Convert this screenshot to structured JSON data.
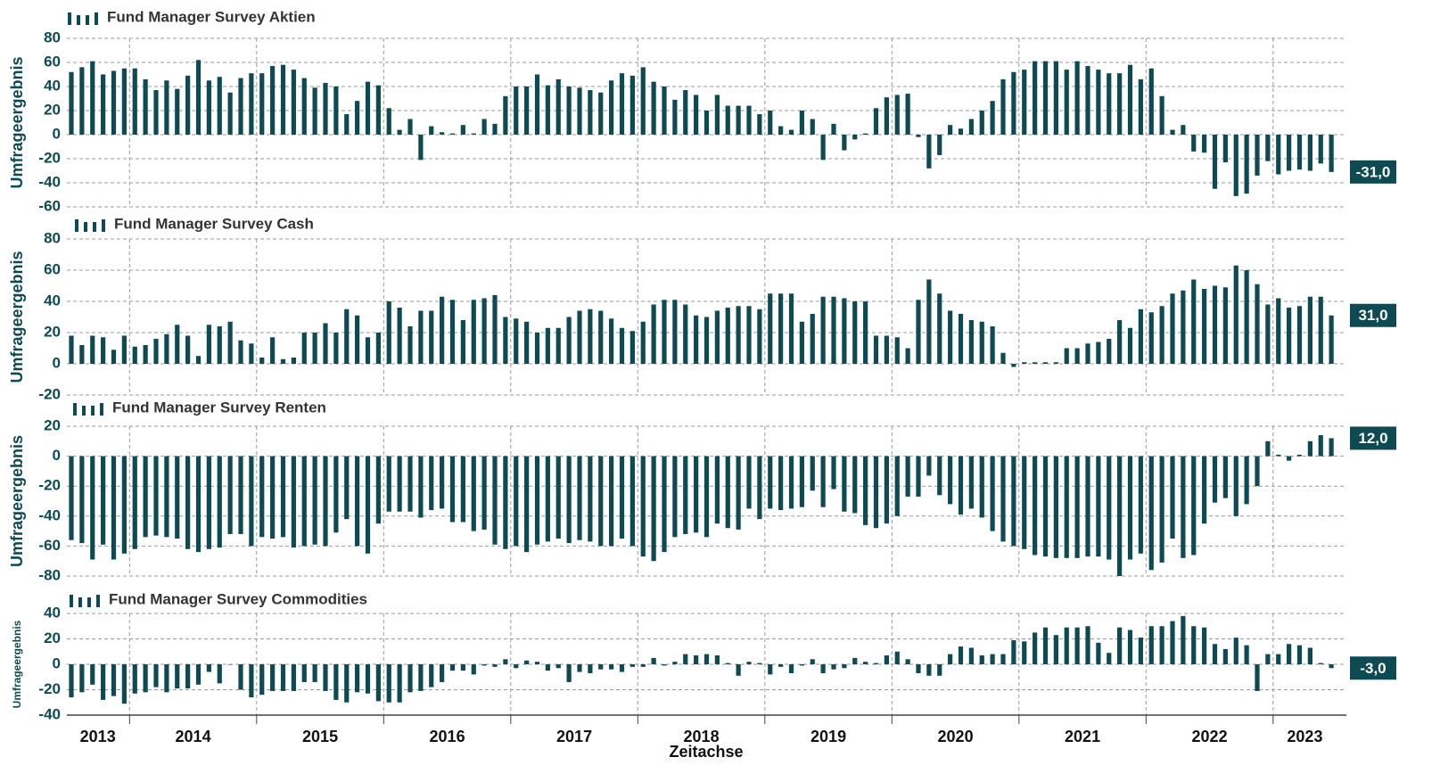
{
  "x_axis": {
    "title": "Zeitachse",
    "years": [
      "2013",
      "2014",
      "2015",
      "2016",
      "2017",
      "2018",
      "2019",
      "2020",
      "2021",
      "2022",
      "2023"
    ]
  },
  "chart_data": [
    {
      "type": "bar",
      "title": "Fund Manager Survey Aktien",
      "y_label": "Umfrageergebnis",
      "color": "#0d4a52",
      "ylim": [
        -60,
        80
      ],
      "yticks": [
        -60,
        -40,
        -20,
        0,
        20,
        40,
        60,
        80
      ],
      "grid": true,
      "last_value_label": "-31,0",
      "values": [
        52,
        56,
        61,
        50,
        53,
        55,
        55,
        46,
        37,
        45,
        38,
        49,
        62,
        45,
        48,
        35,
        47,
        51,
        51,
        57,
        58,
        54,
        47,
        39,
        43,
        40,
        17,
        28,
        44,
        41,
        22,
        4,
        13,
        -21,
        7,
        2,
        1,
        8,
        1,
        13,
        9,
        32,
        40,
        40,
        50,
        41,
        46,
        40,
        39,
        37,
        35,
        45,
        51,
        49,
        56,
        44,
        40,
        29,
        37,
        33,
        20,
        33,
        24,
        24,
        24,
        17,
        20,
        7,
        4,
        20,
        13,
        -21,
        9,
        -13,
        -4,
        1,
        22,
        31,
        33,
        34,
        -2,
        -28,
        -17,
        8,
        5,
        13,
        20,
        28,
        46,
        52,
        54,
        61,
        61,
        61,
        54,
        61,
        57,
        54,
        51,
        51,
        58,
        46,
        55,
        32,
        4,
        8,
        -14,
        -15,
        -45,
        -23,
        -51,
        -49,
        -34,
        -22,
        -33,
        -30,
        -29,
        -30,
        -24,
        -31
      ]
    },
    {
      "type": "bar",
      "title": "Fund Manager Survey Cash",
      "y_label": "Umfrageergebnis",
      "color": "#0d4a52",
      "ylim": [
        -20,
        80
      ],
      "yticks": [
        -20,
        0,
        20,
        40,
        60,
        80
      ],
      "grid": true,
      "last_value_label": "31,0",
      "values": [
        18,
        12,
        18,
        17,
        9,
        18,
        11,
        12,
        16,
        19,
        25,
        18,
        5,
        25,
        24,
        27,
        15,
        13,
        4,
        17,
        3,
        4,
        20,
        20,
        26,
        20,
        35,
        31,
        17,
        20,
        40,
        36,
        24,
        34,
        34,
        43,
        41,
        28,
        41,
        42,
        44,
        30,
        29,
        27,
        20,
        23,
        23,
        30,
        34,
        35,
        34,
        29,
        23,
        21,
        27,
        38,
        41,
        41,
        38,
        31,
        30,
        34,
        36,
        37,
        37,
        35,
        45,
        45,
        45,
        27,
        32,
        43,
        43,
        42,
        40,
        40,
        18,
        18,
        17,
        10,
        41,
        54,
        45,
        34,
        32,
        28,
        27,
        24,
        7,
        -2,
        1,
        1,
        1,
        1,
        10,
        10,
        13,
        14,
        16,
        28,
        23,
        35,
        33,
        37,
        45,
        47,
        54,
        48,
        50,
        49,
        63,
        60,
        51,
        38,
        42,
        36,
        37,
        43,
        43,
        31
      ]
    },
    {
      "type": "bar",
      "title": "Fund Manager Survey Renten",
      "y_label": "Umfrageergebnis",
      "color": "#0d4a52",
      "ylim": [
        -80,
        20
      ],
      "yticks": [
        -80,
        -60,
        -40,
        -20,
        0,
        20
      ],
      "grid": true,
      "last_value_label": "12,0",
      "values": [
        -56,
        -58,
        -69,
        -59,
        -69,
        -65,
        -62,
        -54,
        -53,
        -54,
        -55,
        -62,
        -64,
        -62,
        -61,
        -52,
        -52,
        -60,
        -54,
        -55,
        -54,
        -61,
        -60,
        -59,
        -60,
        -51,
        -42,
        -60,
        -65,
        -45,
        -37,
        -37,
        -37,
        -41,
        -36,
        -35,
        -44,
        -44,
        -50,
        -49,
        -59,
        -62,
        -60,
        -64,
        -59,
        -57,
        -55,
        -58,
        -56,
        -57,
        -60,
        -60,
        -55,
        -60,
        -67,
        -70,
        -64,
        -54,
        -52,
        -51,
        -54,
        -45,
        -48,
        -49,
        -35,
        -42,
        -35,
        -36,
        -35,
        -34,
        -23,
        -34,
        -22,
        -37,
        -38,
        -46,
        -48,
        -45,
        -40,
        -27,
        -27,
        -13,
        -26,
        -32,
        -39,
        -35,
        -41,
        -50,
        -57,
        -60,
        -62,
        -66,
        -67,
        -68,
        -68,
        -68,
        -67,
        -67,
        -69,
        -80,
        -69,
        -65,
        -76,
        -71,
        -55,
        -68,
        -66,
        -45,
        -31,
        -28,
        -40,
        -32,
        -20,
        10,
        1,
        -3,
        1,
        10,
        14,
        12
      ]
    },
    {
      "type": "bar",
      "title": "Fund Manager Survey Commodities",
      "y_label": "Umfrageergebnis",
      "color": "#0d4a52",
      "ylim": [
        -40,
        40
      ],
      "yticks": [
        -40,
        -20,
        0,
        20,
        40
      ],
      "grid": true,
      "last_value_label": "-3,0",
      "values": [
        -26,
        -22,
        -16,
        -28,
        -25,
        -31,
        -23,
        -22,
        -18,
        -22,
        -19,
        -19,
        -16,
        -6,
        -15,
        0,
        -20,
        -26,
        -24,
        -21,
        -21,
        -21,
        -14,
        -14,
        -21,
        -28,
        -30,
        -22,
        -23,
        -29,
        -30,
        -30,
        -22,
        -21,
        -18,
        -14,
        -5,
        -5,
        -8,
        -1,
        -2,
        4,
        -3,
        3,
        2,
        -5,
        -3,
        -14,
        -6,
        -7,
        -4,
        -4,
        -6,
        -2,
        -2,
        5,
        -1,
        2,
        8,
        7,
        8,
        7,
        1,
        -9,
        2,
        1,
        -8,
        -2,
        -7,
        -1,
        4,
        -7,
        -4,
        -3,
        5,
        2,
        1,
        7,
        10,
        4,
        -7,
        -9,
        -9,
        8,
        14,
        13,
        7,
        8,
        8,
        19,
        18,
        25,
        29,
        23,
        29,
        29,
        30,
        17,
        9,
        29,
        27,
        21,
        30,
        30,
        34,
        38,
        30,
        29,
        16,
        12,
        21,
        15,
        -21,
        8,
        8,
        16,
        15,
        13,
        1,
        -3
      ]
    }
  ]
}
